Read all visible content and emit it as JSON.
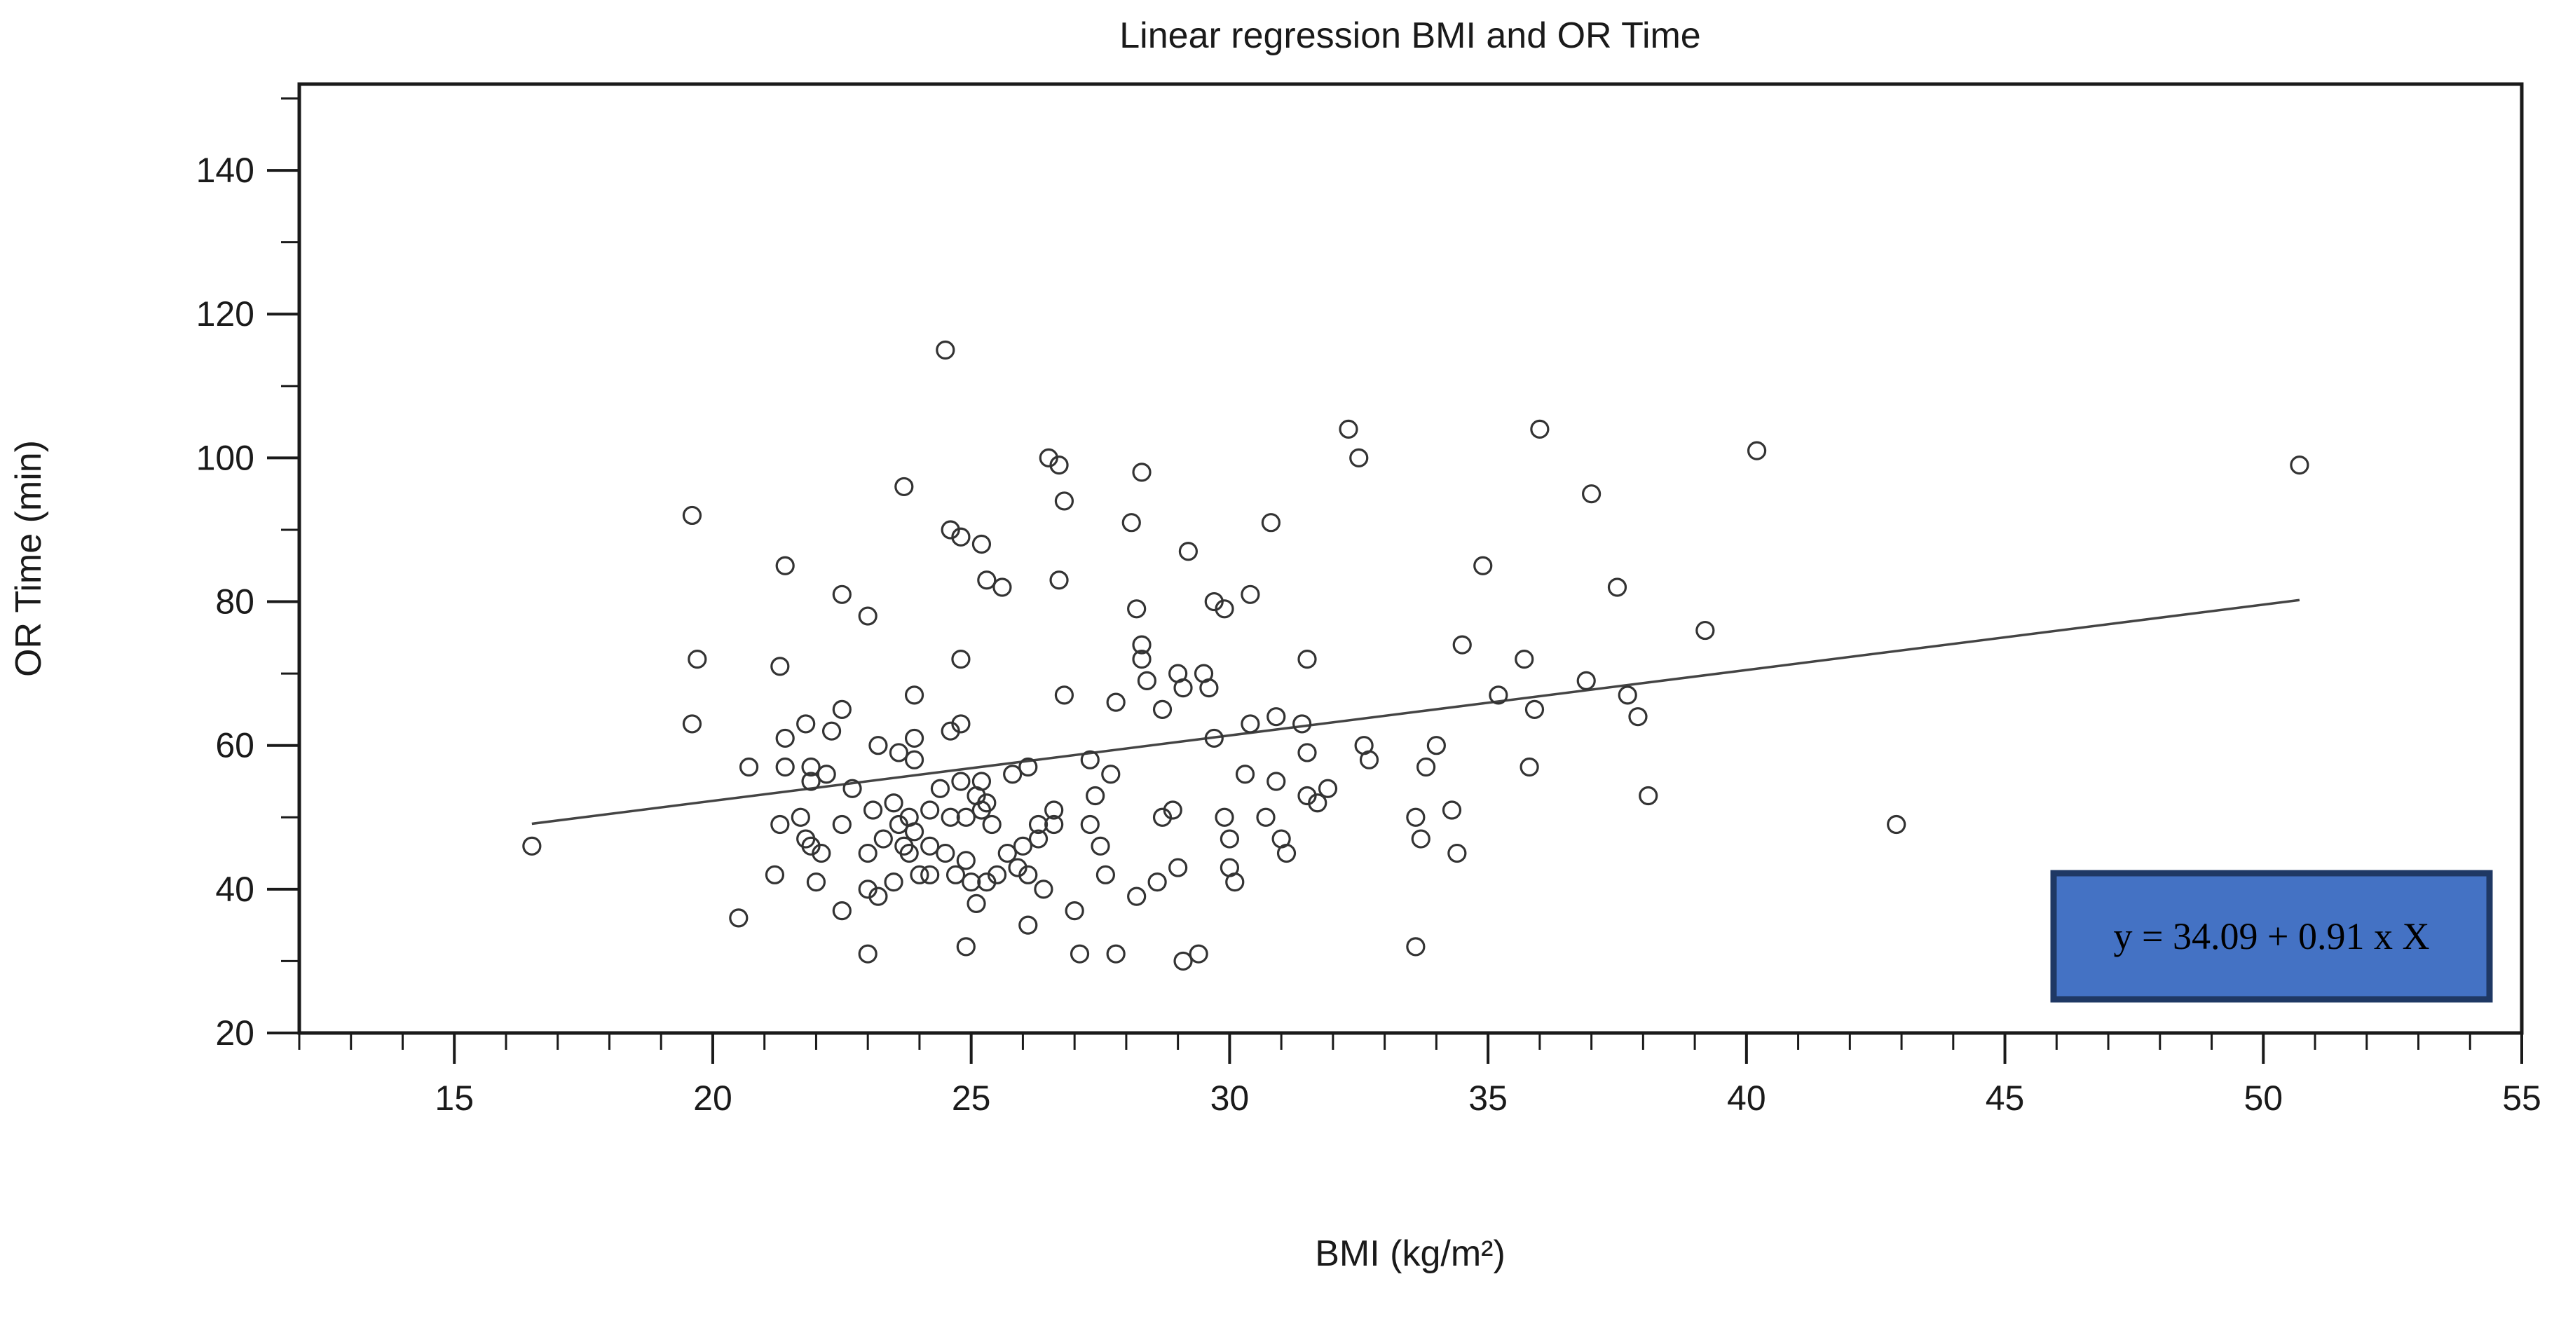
{
  "chart_data": {
    "type": "scatter",
    "title": "Linear regression BMI and OR Time",
    "xlabel": "BMI (kg/m²)",
    "ylabel": "OR Time (min)",
    "xlim": [
      12,
      55
    ],
    "ylim": [
      20,
      152
    ],
    "x_ticks": [
      15,
      20,
      25,
      30,
      35,
      40,
      45,
      50,
      55
    ],
    "x_minor_step": 1,
    "y_ticks": [
      20,
      40,
      60,
      80,
      100,
      120,
      140
    ],
    "y_minor_step": 10,
    "grid": false,
    "legend_position": "none",
    "marker": {
      "shape": "open-circle",
      "radius": 12,
      "color": "#333333"
    },
    "axis_color": "#1a1a1a",
    "regression": {
      "slope": 0.91,
      "intercept": 34.09,
      "x_start": 16.5,
      "x_end": 50.7,
      "color": "#444444"
    },
    "equation_box": {
      "text": "y = 34.09 + 0.91 x X",
      "fill": "#4472C4",
      "border": "#1F3864",
      "text_color": "#000000"
    },
    "points": [
      [
        24.5,
        115
      ],
      [
        19.6,
        92
      ],
      [
        23.7,
        96
      ],
      [
        26.5,
        100
      ],
      [
        26.7,
        99
      ],
      [
        28.3,
        98
      ],
      [
        26.8,
        94
      ],
      [
        28.1,
        91
      ],
      [
        29.2,
        87
      ],
      [
        24.6,
        90
      ],
      [
        24.8,
        89
      ],
      [
        25.2,
        88
      ],
      [
        32.3,
        104
      ],
      [
        32.5,
        100
      ],
      [
        30.8,
        91
      ],
      [
        36.0,
        104
      ],
      [
        40.2,
        101
      ],
      [
        37.0,
        95
      ],
      [
        34.9,
        85
      ],
      [
        37.5,
        82
      ],
      [
        50.7,
        99
      ],
      [
        21.4,
        85
      ],
      [
        22.5,
        81
      ],
      [
        23.0,
        78
      ],
      [
        25.3,
        83
      ],
      [
        25.6,
        82
      ],
      [
        26.7,
        83
      ],
      [
        28.2,
        79
      ],
      [
        29.7,
        80
      ],
      [
        29.9,
        79
      ],
      [
        30.4,
        81
      ],
      [
        39.2,
        76
      ],
      [
        19.7,
        72
      ],
      [
        21.3,
        71
      ],
      [
        24.8,
        72
      ],
      [
        31.5,
        72
      ],
      [
        34.5,
        74
      ],
      [
        35.7,
        72
      ],
      [
        19.6,
        63
      ],
      [
        23.9,
        67
      ],
      [
        26.8,
        67
      ],
      [
        27.8,
        66
      ],
      [
        28.3,
        74
      ],
      [
        28.3,
        72
      ],
      [
        28.4,
        69
      ],
      [
        24.6,
        62
      ],
      [
        24.8,
        63
      ],
      [
        21.8,
        63
      ],
      [
        22.5,
        65
      ],
      [
        22.3,
        62
      ],
      [
        21.4,
        61
      ],
      [
        23.2,
        60
      ],
      [
        23.6,
        59
      ],
      [
        23.9,
        58
      ],
      [
        23.9,
        61
      ],
      [
        29.0,
        70
      ],
      [
        29.5,
        70
      ],
      [
        29.1,
        68
      ],
      [
        29.6,
        68
      ],
      [
        28.7,
        65
      ],
      [
        29.7,
        61
      ],
      [
        30.4,
        63
      ],
      [
        30.9,
        64
      ],
      [
        31.4,
        63
      ],
      [
        31.5,
        59
      ],
      [
        32.6,
        60
      ],
      [
        32.7,
        58
      ],
      [
        34.0,
        60
      ],
      [
        33.8,
        57
      ],
      [
        35.2,
        67
      ],
      [
        35.9,
        65
      ],
      [
        36.9,
        69
      ],
      [
        37.7,
        67
      ],
      [
        37.9,
        64
      ],
      [
        20.7,
        57
      ],
      [
        21.4,
        57
      ],
      [
        21.9,
        57
      ],
      [
        22.2,
        56
      ],
      [
        22.7,
        54
      ],
      [
        25.8,
        56
      ],
      [
        26.1,
        57
      ],
      [
        27.3,
        58
      ],
      [
        27.7,
        56
      ],
      [
        30.3,
        56
      ],
      [
        30.9,
        55
      ],
      [
        31.9,
        54
      ],
      [
        31.5,
        53
      ],
      [
        31.7,
        52
      ],
      [
        35.8,
        57
      ],
      [
        38.1,
        53
      ],
      [
        34.3,
        51
      ],
      [
        25.2,
        55
      ],
      [
        24.4,
        54
      ],
      [
        24.8,
        55
      ],
      [
        25.1,
        53
      ],
      [
        25.3,
        52
      ],
      [
        23.5,
        52
      ],
      [
        23.1,
        51
      ],
      [
        21.9,
        55
      ],
      [
        27.4,
        53
      ],
      [
        28.7,
        50
      ],
      [
        28.9,
        51
      ],
      [
        29.9,
        50
      ],
      [
        30.7,
        50
      ],
      [
        33.6,
        50
      ],
      [
        25.2,
        51
      ],
      [
        24.9,
        50
      ],
      [
        24.6,
        50
      ],
      [
        24.2,
        51
      ],
      [
        25.4,
        49
      ],
      [
        23.8,
        50
      ],
      [
        23.9,
        48
      ],
      [
        21.7,
        50
      ],
      [
        21.3,
        49
      ],
      [
        42.9,
        49
      ],
      [
        21.8,
        47
      ],
      [
        22.5,
        49
      ],
      [
        23.6,
        49
      ],
      [
        23.3,
        47
      ],
      [
        26.3,
        49
      ],
      [
        26.3,
        47
      ],
      [
        26.6,
        51
      ],
      [
        26.6,
        49
      ],
      [
        27.3,
        49
      ],
      [
        27.5,
        46
      ],
      [
        30.0,
        47
      ],
      [
        31.0,
        47
      ],
      [
        31.1,
        45
      ],
      [
        33.7,
        47
      ],
      [
        34.4,
        45
      ],
      [
        23.8,
        45
      ],
      [
        23.0,
        45
      ],
      [
        23.7,
        46
      ],
      [
        21.9,
        46
      ],
      [
        22.1,
        45
      ],
      [
        24.5,
        45
      ],
      [
        24.9,
        44
      ],
      [
        24.2,
        46
      ],
      [
        25.7,
        45
      ],
      [
        26.0,
        46
      ],
      [
        25.9,
        43
      ],
      [
        26.1,
        42
      ],
      [
        29.0,
        43
      ],
      [
        30.0,
        43
      ],
      [
        30.1,
        41
      ],
      [
        16.5,
        46
      ],
      [
        21.2,
        42
      ],
      [
        22.0,
        41
      ],
      [
        23.5,
        41
      ],
      [
        24.0,
        42
      ],
      [
        24.2,
        42
      ],
      [
        24.7,
        42
      ],
      [
        25.0,
        41
      ],
      [
        25.3,
        41
      ],
      [
        25.5,
        42
      ],
      [
        26.4,
        40
      ],
      [
        27.6,
        42
      ],
      [
        28.6,
        41
      ],
      [
        28.2,
        39
      ],
      [
        23.0,
        40
      ],
      [
        23.2,
        39
      ],
      [
        20.5,
        36
      ],
      [
        22.5,
        37
      ],
      [
        25.1,
        38
      ],
      [
        26.1,
        35
      ],
      [
        27.0,
        37
      ],
      [
        23.0,
        31
      ],
      [
        24.9,
        32
      ],
      [
        27.1,
        31
      ],
      [
        27.8,
        31
      ],
      [
        29.1,
        30
      ],
      [
        29.4,
        31
      ],
      [
        33.6,
        32
      ]
    ]
  }
}
